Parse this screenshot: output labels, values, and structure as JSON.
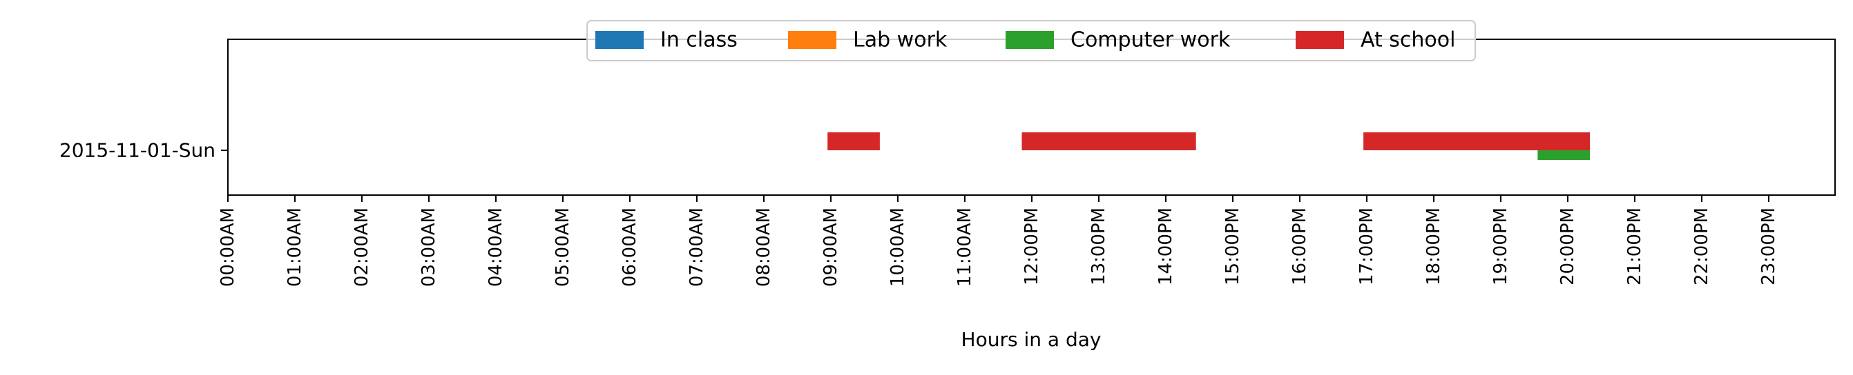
{
  "chart_data": {
    "type": "bar",
    "orientation": "horizontal-timeline",
    "title": "",
    "xlabel": "Hours in a day",
    "ylabel": "",
    "xlim": [
      0,
      24
    ],
    "x_tick_labels": [
      "00:00AM",
      "01:00AM",
      "02:00AM",
      "03:00AM",
      "04:00AM",
      "05:00AM",
      "06:00AM",
      "07:00AM",
      "08:00AM",
      "09:00AM",
      "10:00AM",
      "11:00AM",
      "12:00PM",
      "13:00PM",
      "14:00PM",
      "15:00PM",
      "16:00PM",
      "17:00PM",
      "18:00PM",
      "19:00PM",
      "20:00PM",
      "21:00PM",
      "22:00PM",
      "23:00PM"
    ],
    "categories": [
      "2015-11-01-Sun"
    ],
    "legend": {
      "placement": "top-center",
      "entries": [
        {
          "name": "In class",
          "color": "#1f77b4"
        },
        {
          "name": "Lab work",
          "color": "#ff7f0e"
        },
        {
          "name": "Computer work",
          "color": "#2ca02c"
        },
        {
          "name": "At school",
          "color": "#d62728"
        }
      ]
    },
    "series": [
      {
        "name": "In class",
        "intervals": []
      },
      {
        "name": "Lab work",
        "intervals": []
      },
      {
        "name": "Computer work",
        "intervals": [
          {
            "category": "2015-11-01-Sun",
            "start": 19.55,
            "end": 20.33
          }
        ]
      },
      {
        "name": "At school",
        "intervals": [
          {
            "category": "2015-11-01-Sun",
            "start": 8.95,
            "end": 9.73
          },
          {
            "category": "2015-11-01-Sun",
            "start": 11.85,
            "end": 14.45
          },
          {
            "category": "2015-11-01-Sun",
            "start": 16.95,
            "end": 20.33
          }
        ]
      }
    ],
    "grid": false
  }
}
